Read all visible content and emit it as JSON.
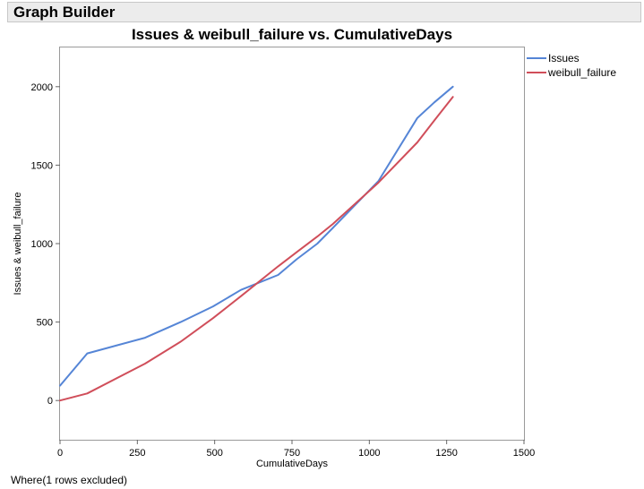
{
  "window": {
    "title": "Graph Builder"
  },
  "footer": {
    "where_text": "Where(1 rows excluded)"
  },
  "chart_data": {
    "type": "line",
    "title": "Issues & weibull_failure vs. CumulativeDays",
    "xlabel": "CumulativeDays",
    "ylabel": "Issues & weibull_failure",
    "xlim": [
      0,
      1500
    ],
    "ylim": [
      -250,
      2250
    ],
    "xticks": [
      0,
      250,
      500,
      750,
      1000,
      1250,
      1500
    ],
    "yticks": [
      0,
      500,
      1000,
      1500,
      2000
    ],
    "grid": false,
    "legend_position": "right",
    "series": [
      {
        "name": "Issues",
        "color": "#5585d6",
        "x": [
          0,
          88,
          275,
          390,
          495,
          585,
          705,
          765,
          832,
          882,
          1030,
          1155,
          1210,
          1270
        ],
        "y": [
          95,
          300,
          400,
          500,
          600,
          705,
          800,
          900,
          1000,
          1100,
          1400,
          1800,
          1900,
          2000
        ]
      },
      {
        "name": "weibull_failure",
        "color": "#d04e5a",
        "x": [
          0,
          88,
          275,
          390,
          495,
          585,
          705,
          765,
          832,
          882,
          1030,
          1155,
          1210,
          1270
        ],
        "y": [
          0,
          45,
          235,
          375,
          525,
          665,
          855,
          945,
          1045,
          1125,
          1390,
          1645,
          1785,
          1935
        ]
      }
    ]
  }
}
